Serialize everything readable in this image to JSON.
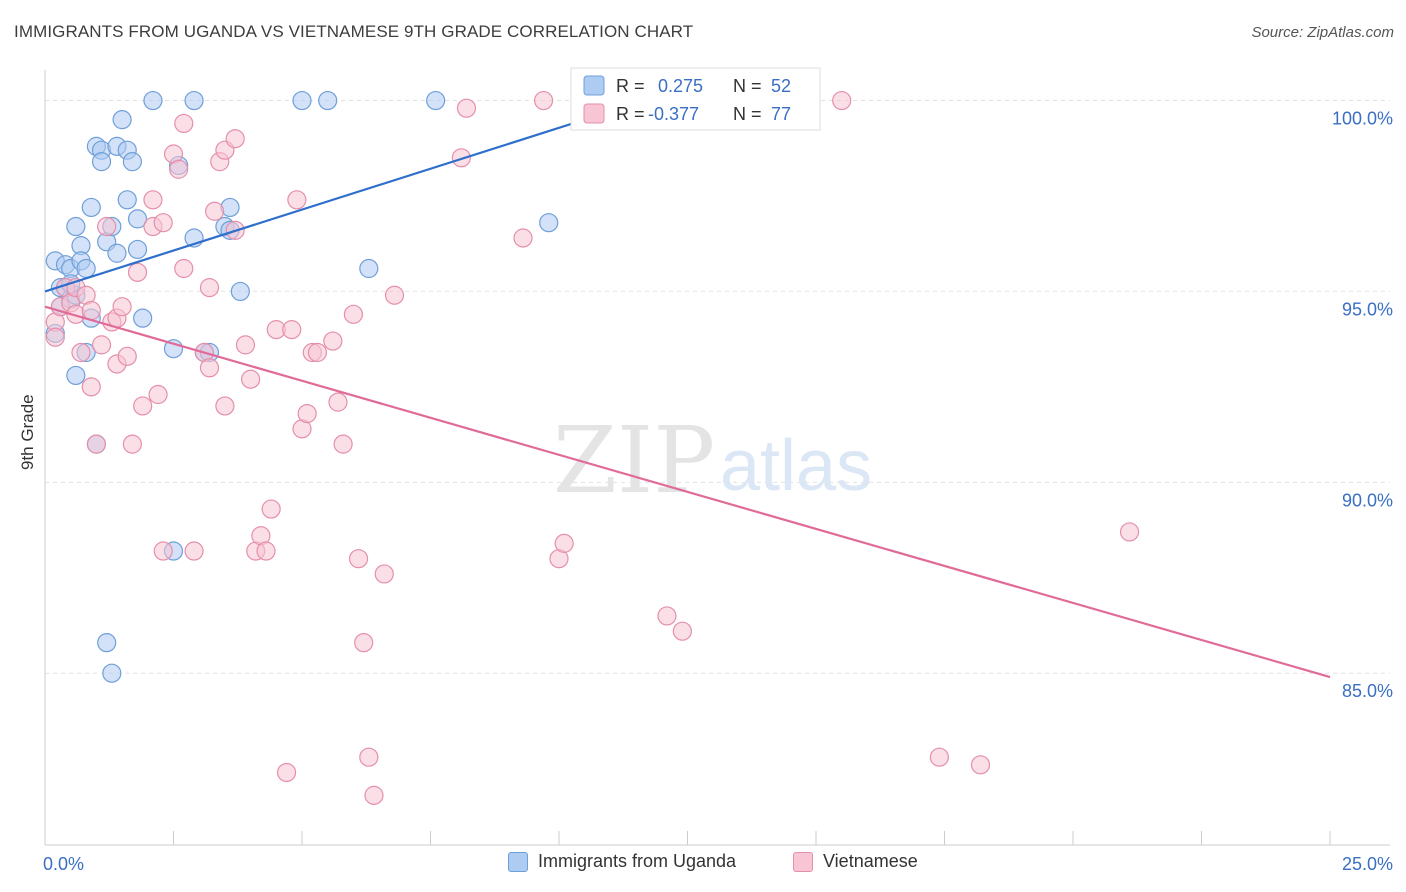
{
  "header": {
    "title": "IMMIGRANTS FROM UGANDA VS VIETNAMESE 9TH GRADE CORRELATION CHART",
    "source": "Source: ZipAtlas.com"
  },
  "watermark": {
    "zip": "ZIP",
    "atlas": "atlas"
  },
  "colors": {
    "blue_fill": "#aecbf2",
    "blue_stroke": "#6f9fd8",
    "blue_line": "#2f6fcc",
    "pink_fill": "#f7c5d4",
    "pink_stroke": "#e58fab",
    "pink_line": "#e06b98",
    "tick_text": "#3a6fc4",
    "grid": "#e2e2e2"
  },
  "legend_top": {
    "rows": [
      {
        "r_label": "R =",
        "r_value": "0.275",
        "n_label": "N =",
        "n_value": "52"
      },
      {
        "r_label": "R =",
        "r_value": "-0.377",
        "n_label": "N =",
        "n_value": "77"
      }
    ]
  },
  "legend_bottom": [
    {
      "label": "Immigrants from Uganda"
    },
    {
      "label": "Vietnamese"
    }
  ],
  "chart_data": {
    "type": "scatter",
    "title": "IMMIGRANTS FROM UGANDA VS VIETNAMESE 9TH GRADE CORRELATION CHART",
    "xlabel": "",
    "ylabel": "9th Grade",
    "xlim": [
      0,
      25
    ],
    "ylim": [
      80.5,
      100.8
    ],
    "x_tick_labels": [
      "0.0%",
      "25.0%"
    ],
    "y_ticks": [
      85,
      90,
      95,
      100
    ],
    "y_tick_labels": [
      "85.0%",
      "90.0%",
      "95.0%",
      "100.0%"
    ],
    "grid": true,
    "series": [
      {
        "name": "Immigrants from Uganda",
        "color": "#aecbf2",
        "r": 0.275,
        "n": 52,
        "trend": {
          "x": [
            0,
            10.5
          ],
          "y": [
            95.0,
            99.5
          ]
        },
        "points": [
          [
            0.2,
            95.8
          ],
          [
            0.3,
            95.1
          ],
          [
            0.3,
            94.6
          ],
          [
            0.4,
            95.1
          ],
          [
            0.4,
            95.7
          ],
          [
            0.5,
            95.6
          ],
          [
            0.5,
            94.8
          ],
          [
            0.6,
            96.7
          ],
          [
            0.6,
            94.9
          ],
          [
            0.7,
            96.2
          ],
          [
            0.7,
            95.8
          ],
          [
            0.8,
            95.6
          ],
          [
            0.8,
            93.4
          ],
          [
            0.6,
            92.8
          ],
          [
            0.9,
            97.2
          ],
          [
            0.9,
            94.3
          ],
          [
            1.0,
            98.8
          ],
          [
            1.1,
            98.7
          ],
          [
            1.1,
            98.4
          ],
          [
            1.2,
            96.3
          ],
          [
            1.3,
            96.7
          ],
          [
            1.4,
            96.0
          ],
          [
            1.4,
            98.8
          ],
          [
            1.5,
            99.5
          ],
          [
            1.6,
            98.7
          ],
          [
            1.6,
            97.4
          ],
          [
            1.7,
            98.4
          ],
          [
            1.8,
            96.9
          ],
          [
            1.8,
            96.1
          ],
          [
            1.9,
            94.3
          ],
          [
            2.1,
            100.0
          ],
          [
            2.5,
            93.5
          ],
          [
            2.6,
            98.3
          ],
          [
            2.9,
            96.4
          ],
          [
            2.9,
            100.0
          ],
          [
            3.1,
            93.4
          ],
          [
            3.5,
            96.7
          ],
          [
            3.6,
            97.2
          ],
          [
            3.6,
            96.6
          ],
          [
            3.8,
            95.0
          ],
          [
            5.0,
            100.0
          ],
          [
            5.5,
            100.0
          ],
          [
            6.3,
            95.6
          ],
          [
            7.6,
            100.0
          ],
          [
            9.8,
            96.8
          ],
          [
            1.0,
            91.0
          ],
          [
            1.2,
            85.8
          ],
          [
            1.3,
            85.0
          ],
          [
            2.5,
            88.2
          ],
          [
            0.2,
            93.9
          ],
          [
            0.5,
            95.2
          ],
          [
            3.2,
            93.4
          ]
        ]
      },
      {
        "name": "Vietnamese",
        "color": "#f7c5d4",
        "r": -0.377,
        "n": 77,
        "trend": {
          "x": [
            0,
            25
          ],
          "y": [
            94.6,
            84.9
          ]
        },
        "points": [
          [
            0.2,
            94.2
          ],
          [
            0.2,
            93.8
          ],
          [
            0.3,
            94.6
          ],
          [
            0.4,
            95.1
          ],
          [
            0.5,
            94.7
          ],
          [
            0.6,
            95.1
          ],
          [
            0.6,
            94.4
          ],
          [
            0.7,
            93.4
          ],
          [
            0.8,
            94.9
          ],
          [
            0.9,
            94.5
          ],
          [
            0.9,
            92.5
          ],
          [
            1.0,
            91.0
          ],
          [
            1.1,
            93.6
          ],
          [
            1.2,
            96.7
          ],
          [
            1.3,
            94.2
          ],
          [
            1.4,
            94.3
          ],
          [
            1.4,
            93.1
          ],
          [
            1.5,
            94.6
          ],
          [
            1.6,
            93.3
          ],
          [
            1.7,
            91.0
          ],
          [
            1.8,
            95.5
          ],
          [
            1.9,
            92.0
          ],
          [
            2.1,
            96.7
          ],
          [
            2.1,
            97.4
          ],
          [
            2.2,
            92.3
          ],
          [
            2.3,
            96.8
          ],
          [
            2.3,
            88.2
          ],
          [
            2.5,
            98.6
          ],
          [
            2.6,
            98.2
          ],
          [
            2.7,
            95.6
          ],
          [
            2.7,
            99.4
          ],
          [
            2.9,
            88.2
          ],
          [
            3.1,
            93.4
          ],
          [
            3.2,
            95.1
          ],
          [
            3.2,
            93.0
          ],
          [
            3.3,
            97.1
          ],
          [
            3.4,
            98.4
          ],
          [
            3.5,
            92.0
          ],
          [
            3.5,
            98.7
          ],
          [
            3.7,
            96.6
          ],
          [
            3.7,
            99.0
          ],
          [
            3.9,
            93.6
          ],
          [
            4.0,
            92.7
          ],
          [
            4.1,
            88.2
          ],
          [
            4.2,
            88.6
          ],
          [
            4.3,
            88.2
          ],
          [
            4.4,
            89.3
          ],
          [
            4.5,
            94.0
          ],
          [
            4.7,
            82.4
          ],
          [
            4.8,
            94.0
          ],
          [
            4.9,
            97.4
          ],
          [
            5.0,
            91.4
          ],
          [
            5.1,
            91.8
          ],
          [
            5.2,
            93.4
          ],
          [
            5.3,
            93.4
          ],
          [
            5.6,
            93.7
          ],
          [
            5.7,
            92.1
          ],
          [
            5.8,
            91.0
          ],
          [
            6.0,
            94.4
          ],
          [
            6.1,
            88.0
          ],
          [
            6.2,
            85.8
          ],
          [
            6.3,
            82.8
          ],
          [
            6.4,
            81.8
          ],
          [
            6.6,
            87.6
          ],
          [
            6.8,
            94.9
          ],
          [
            8.1,
            98.5
          ],
          [
            8.2,
            99.8
          ],
          [
            9.3,
            96.4
          ],
          [
            9.7,
            100.0
          ],
          [
            10.0,
            88.0
          ],
          [
            10.1,
            88.4
          ],
          [
            12.1,
            86.5
          ],
          [
            12.4,
            86.1
          ],
          [
            15.5,
            100.0
          ],
          [
            17.4,
            82.8
          ],
          [
            18.2,
            82.6
          ],
          [
            21.1,
            88.7
          ]
        ]
      }
    ]
  }
}
